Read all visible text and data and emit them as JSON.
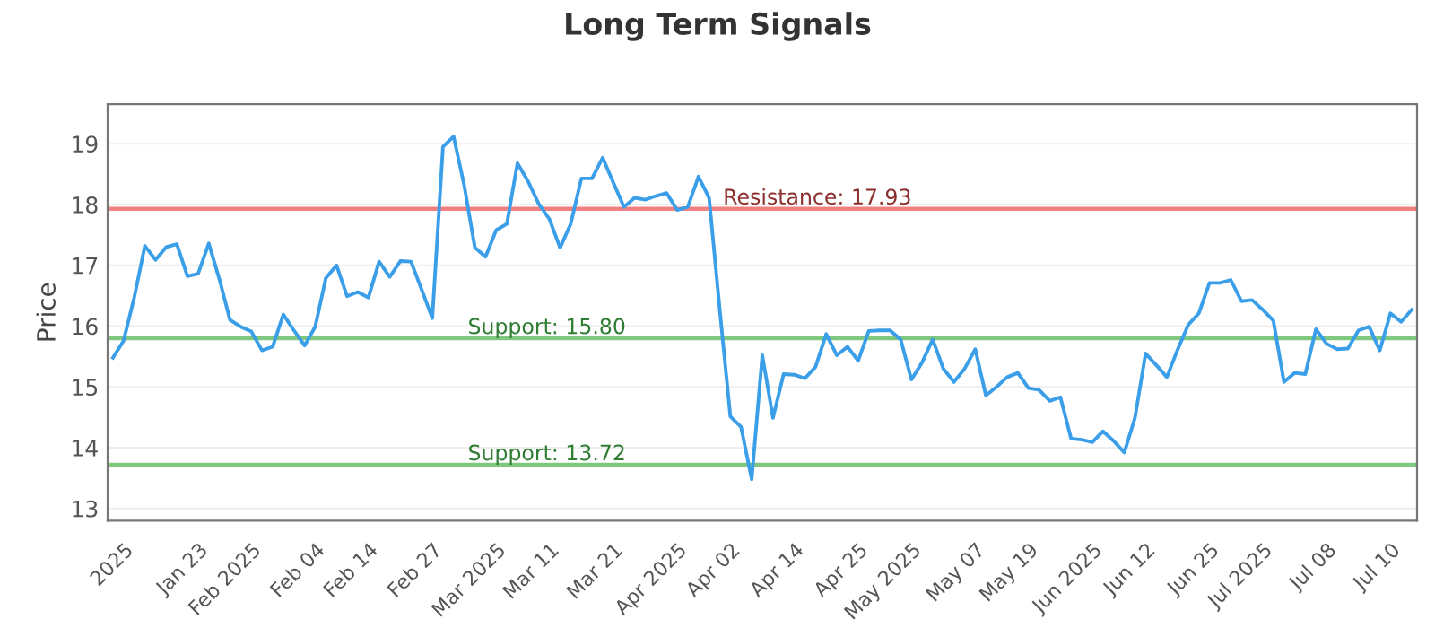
{
  "chart_data": {
    "type": "line",
    "title": "Long Term Signals",
    "ylabel": "Price",
    "categories": [
      null,
      "2025",
      null,
      null,
      null,
      null,
      null,
      null,
      "Jan 23",
      null,
      null,
      null,
      null,
      "Feb 2025",
      null,
      null,
      null,
      null,
      null,
      "Feb 04",
      null,
      null,
      null,
      null,
      "Feb 14",
      null,
      null,
      null,
      null,
      null,
      "Feb 27",
      null,
      null,
      null,
      null,
      null,
      "Mar 2025",
      null,
      null,
      null,
      null,
      "Mar 11",
      null,
      null,
      null,
      null,
      null,
      "Mar 21",
      null,
      null,
      null,
      null,
      null,
      "Apr 2025",
      null,
      null,
      null,
      null,
      "Apr 02",
      null,
      null,
      null,
      null,
      null,
      "Apr 14",
      null,
      null,
      null,
      null,
      null,
      "Apr 25",
      null,
      null,
      null,
      null,
      "May 2025",
      null,
      null,
      null,
      null,
      null,
      "May 07",
      null,
      null,
      null,
      null,
      "May 19",
      null,
      null,
      null,
      null,
      null,
      "Jun 2025",
      null,
      null,
      null,
      null,
      "Jun 12",
      null,
      null,
      null,
      null,
      null,
      "Jun 25",
      null,
      null,
      null,
      null,
      "Jul 2025",
      null,
      null,
      null,
      null,
      null,
      "Jul 08",
      null,
      null,
      null,
      null,
      null,
      "Jul 10",
      null,
      null
    ],
    "series": [
      {
        "color": "#3a9fe8",
        "values": [
          15.48,
          15.76,
          16.47,
          17.32,
          17.09,
          17.3,
          17.35,
          16.82,
          16.86,
          17.36,
          16.77,
          16.1,
          15.99,
          15.91,
          15.6,
          15.66,
          16.19,
          15.93,
          15.68,
          15.99,
          16.79,
          17.0,
          16.49,
          16.56,
          16.47,
          17.06,
          16.81,
          17.07,
          17.06,
          16.6,
          16.13,
          18.95,
          19.12,
          18.31,
          17.29,
          17.14,
          17.58,
          17.68,
          18.68,
          18.38,
          18.01,
          17.76,
          17.29,
          17.68,
          18.43,
          18.43,
          18.77,
          18.36,
          17.96,
          18.11,
          18.08,
          18.14,
          18.19,
          17.91,
          17.96,
          18.46,
          18.11,
          16.27,
          14.51,
          14.34,
          13.48,
          15.52,
          14.49,
          15.21,
          15.2,
          15.14,
          15.33,
          15.87,
          15.52,
          15.66,
          15.43,
          15.92,
          15.93,
          15.93,
          15.78,
          15.12,
          15.4,
          15.78,
          15.3,
          15.08,
          15.3,
          15.62,
          14.86,
          15.0,
          15.16,
          15.23,
          14.98,
          14.95,
          14.77,
          14.83,
          14.15,
          14.13,
          14.09,
          14.27,
          14.11,
          13.92,
          14.49,
          15.55,
          15.36,
          15.16,
          15.61,
          16.02,
          16.21,
          16.71,
          16.71,
          16.76,
          16.41,
          16.43,
          16.27,
          16.09,
          15.08,
          15.23,
          15.21,
          15.95,
          15.71,
          15.62,
          15.63,
          15.93,
          15.99,
          15.6,
          16.21,
          16.07,
          16.27
        ]
      }
    ],
    "ylim": [
      12.8,
      19.65
    ],
    "yticks": [
      13,
      14,
      15,
      16,
      17,
      18,
      19
    ],
    "grid": "y",
    "marker": "none",
    "line_style": "solid",
    "ref_lines": [
      {
        "axis": "y",
        "value": 17.93,
        "label": "Resistance: 17.93",
        "color": "#f28080"
      },
      {
        "axis": "y",
        "value": 15.8,
        "label": "Support: 15.80",
        "color": "#80c880"
      },
      {
        "axis": "y",
        "value": 13.72,
        "label": "Support: 13.72",
        "color": "#80c880"
      }
    ]
  }
}
